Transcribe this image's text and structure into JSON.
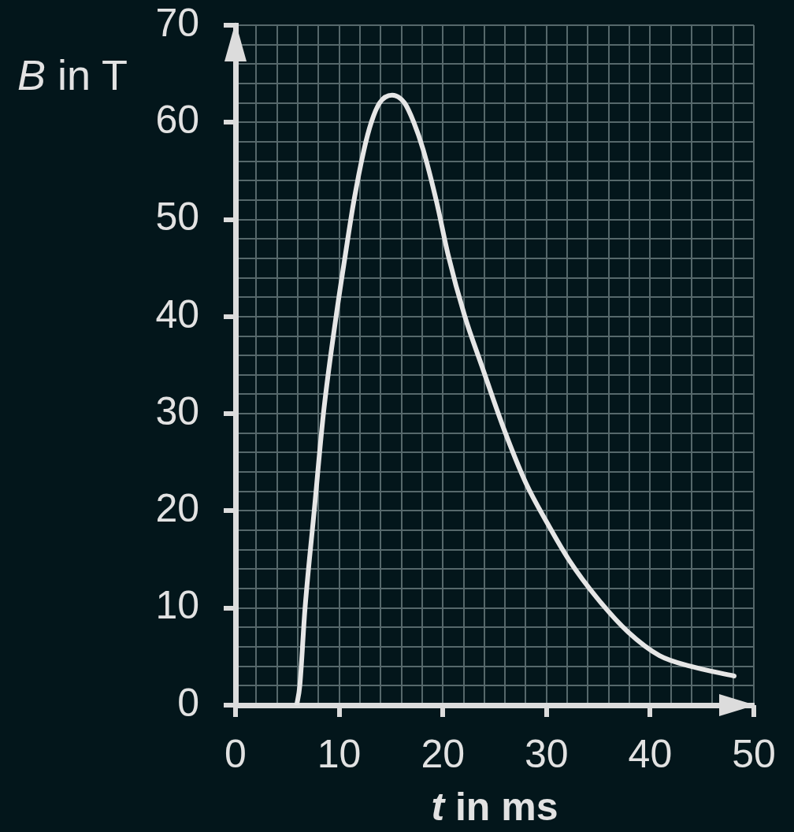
{
  "chart_data": {
    "type": "line",
    "xlabel": "t in ms",
    "ylabel": "B in T",
    "x": [
      5.9,
      6.2,
      6.7,
      7.6,
      8.5,
      9.7,
      10.6,
      11.4,
      12.4,
      13.1,
      13.9,
      15.1,
      16.3,
      17.2,
      18.1,
      19.4,
      20.5,
      22.1,
      23.8,
      25.9,
      28.0,
      30.1,
      32.2,
      34.9,
      37.9,
      40.9,
      43.9,
      48.1
    ],
    "series": [
      {
        "color": "#e6e6e6",
        "values": [
          0,
          2,
          9.9,
          20.1,
          30.2,
          40,
          46.4,
          51.8,
          57.2,
          60,
          62,
          62.8,
          62,
          60,
          57.2,
          51.8,
          46.4,
          40.1,
          34.8,
          28.4,
          22.9,
          18.7,
          14.9,
          11.0,
          7.5,
          5.1,
          4.0,
          3.0
        ]
      }
    ],
    "xlim": [
      0,
      50
    ],
    "ylim": [
      0,
      70
    ],
    "xticks": [
      0,
      {
        "value": 2,
        "label": null
      },
      {
        "value": 4,
        "label": null
      },
      {
        "value": 6,
        "label": null
      },
      {
        "value": 8,
        "label": null
      },
      10,
      {
        "value": 12,
        "label": null
      },
      {
        "value": 14,
        "label": null
      },
      {
        "value": 16,
        "label": null
      },
      {
        "value": 18,
        "label": null
      },
      20,
      {
        "value": 22,
        "label": null
      },
      {
        "value": 24,
        "label": null
      },
      {
        "value": 26,
        "label": null
      },
      {
        "value": 28,
        "label": null
      },
      30,
      {
        "value": 32,
        "label": null
      },
      {
        "value": 34,
        "label": null
      },
      {
        "value": 36,
        "label": null
      },
      {
        "value": 38,
        "label": null
      },
      40,
      {
        "value": 42,
        "label": null
      },
      {
        "value": 44,
        "label": null
      },
      {
        "value": 46,
        "label": null
      },
      {
        "value": 48,
        "label": null
      },
      50
    ],
    "yticks": [
      0,
      {
        "value": 2,
        "label": null
      },
      {
        "value": 4,
        "label": null
      },
      {
        "value": 6,
        "label": null
      },
      {
        "value": 8,
        "label": null
      },
      10,
      {
        "value": 12,
        "label": null
      },
      {
        "value": 14,
        "label": null
      },
      {
        "value": 16,
        "label": null
      },
      {
        "value": 18,
        "label": null
      },
      20,
      {
        "value": 22,
        "label": null
      },
      {
        "value": 24,
        "label": null
      },
      {
        "value": 26,
        "label": null
      },
      {
        "value": 28,
        "label": null
      },
      30,
      {
        "value": 32,
        "label": null
      },
      {
        "value": 34,
        "label": null
      },
      {
        "value": 36,
        "label": null
      },
      {
        "value": 38,
        "label": null
      },
      40,
      {
        "value": 42,
        "label": null
      },
      {
        "value": 44,
        "label": null
      },
      {
        "value": 46,
        "label": null
      },
      {
        "value": 48,
        "label": null
      },
      50,
      {
        "value": 52,
        "label": null
      },
      {
        "value": 54,
        "label": null
      },
      {
        "value": 56,
        "label": null
      },
      {
        "value": 58,
        "label": null
      },
      60,
      {
        "value": 62,
        "label": null
      },
      {
        "value": 64,
        "label": null
      },
      {
        "value": 66,
        "label": null
      },
      {
        "value": 68,
        "label": null
      },
      70
    ],
    "grid": true,
    "legend": false,
    "marker": "none",
    "line_style": "solid"
  }
}
